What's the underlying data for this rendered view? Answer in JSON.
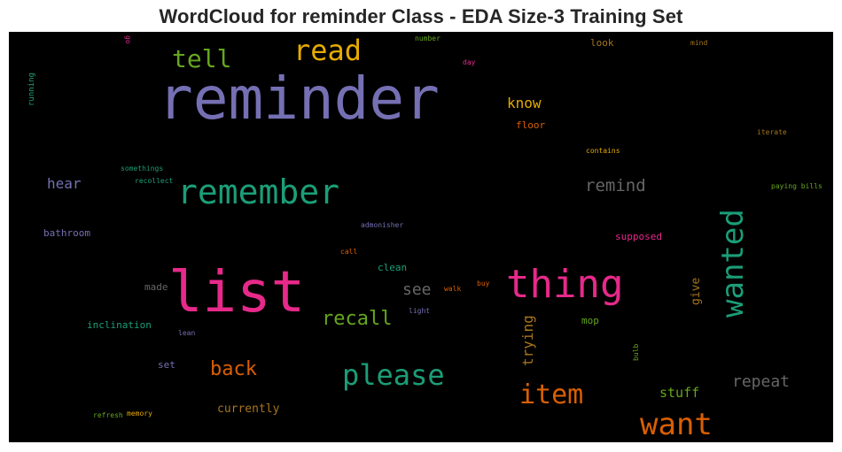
{
  "chart_data": {
    "type": "wordcloud",
    "title": "WordCloud for reminder Class - EDA Size-3 Training Set",
    "background": "#000000",
    "palette": [
      "#1b9e77",
      "#d95f02",
      "#7570b3",
      "#e7298a",
      "#66a61e",
      "#e6ab02",
      "#a6761d",
      "#666666"
    ],
    "words": [
      {
        "text": "reminder",
        "color": "#7570b3"
      },
      {
        "text": "list",
        "color": "#e7298a"
      },
      {
        "text": "remember",
        "color": "#1b9e77"
      },
      {
        "text": "thing",
        "color": "#e7298a"
      },
      {
        "text": "wanted",
        "color": "#1b9e77"
      },
      {
        "text": "want",
        "color": "#d95f02"
      },
      {
        "text": "read",
        "color": "#e6ab02"
      },
      {
        "text": "please",
        "color": "#1b9e77"
      },
      {
        "text": "item",
        "color": "#d95f02"
      },
      {
        "text": "tell",
        "color": "#66a61e"
      },
      {
        "text": "recall",
        "color": "#66a61e"
      },
      {
        "text": "back",
        "color": "#d95f02"
      },
      {
        "text": "remind",
        "color": "#666666"
      },
      {
        "text": "repeat",
        "color": "#666666"
      },
      {
        "text": "see",
        "color": "#666666"
      },
      {
        "text": "trying",
        "color": "#a6761d"
      },
      {
        "text": "know",
        "color": "#e6ab02"
      },
      {
        "text": "hear",
        "color": "#7570b3"
      },
      {
        "text": "stuff",
        "color": "#66a61e"
      },
      {
        "text": "currently",
        "color": "#a6761d"
      },
      {
        "text": "give",
        "color": "#a6761d"
      },
      {
        "text": "inclination",
        "color": "#1b9e77"
      },
      {
        "text": "bathroom",
        "color": "#7570b3"
      },
      {
        "text": "supposed",
        "color": "#e7298a"
      },
      {
        "text": "floor",
        "color": "#d95f02"
      },
      {
        "text": "look",
        "color": "#a6761d"
      },
      {
        "text": "mop",
        "color": "#66a61e"
      },
      {
        "text": "clean",
        "color": "#1b9e77"
      },
      {
        "text": "made",
        "color": "#666666"
      },
      {
        "text": "set",
        "color": "#7570b3"
      },
      {
        "text": "running",
        "color": "#1b9e77"
      },
      {
        "text": "somethings",
        "color": "#1b9e77"
      },
      {
        "text": "recollect",
        "color": "#1b9e77"
      },
      {
        "text": "admonisher",
        "color": "#7570b3"
      },
      {
        "text": "call",
        "color": "#d95f02"
      },
      {
        "text": "walk",
        "color": "#d95f02"
      },
      {
        "text": "buy",
        "color": "#d95f02"
      },
      {
        "text": "light",
        "color": "#7570b3"
      },
      {
        "text": "lean",
        "color": "#7570b3"
      },
      {
        "text": "refresh",
        "color": "#66a61e"
      },
      {
        "text": "memory",
        "color": "#e6ab02"
      },
      {
        "text": "contains",
        "color": "#e6ab02"
      },
      {
        "text": "iterate",
        "color": "#a6761d"
      },
      {
        "text": "paying bills",
        "color": "#66a61e"
      },
      {
        "text": "day",
        "color": "#e7298a"
      },
      {
        "text": "number",
        "color": "#66a61e"
      },
      {
        "text": "mind",
        "color": "#a6761d"
      },
      {
        "text": "go",
        "color": "#e7298a"
      },
      {
        "text": "bulb",
        "color": "#66a61e"
      }
    ]
  }
}
